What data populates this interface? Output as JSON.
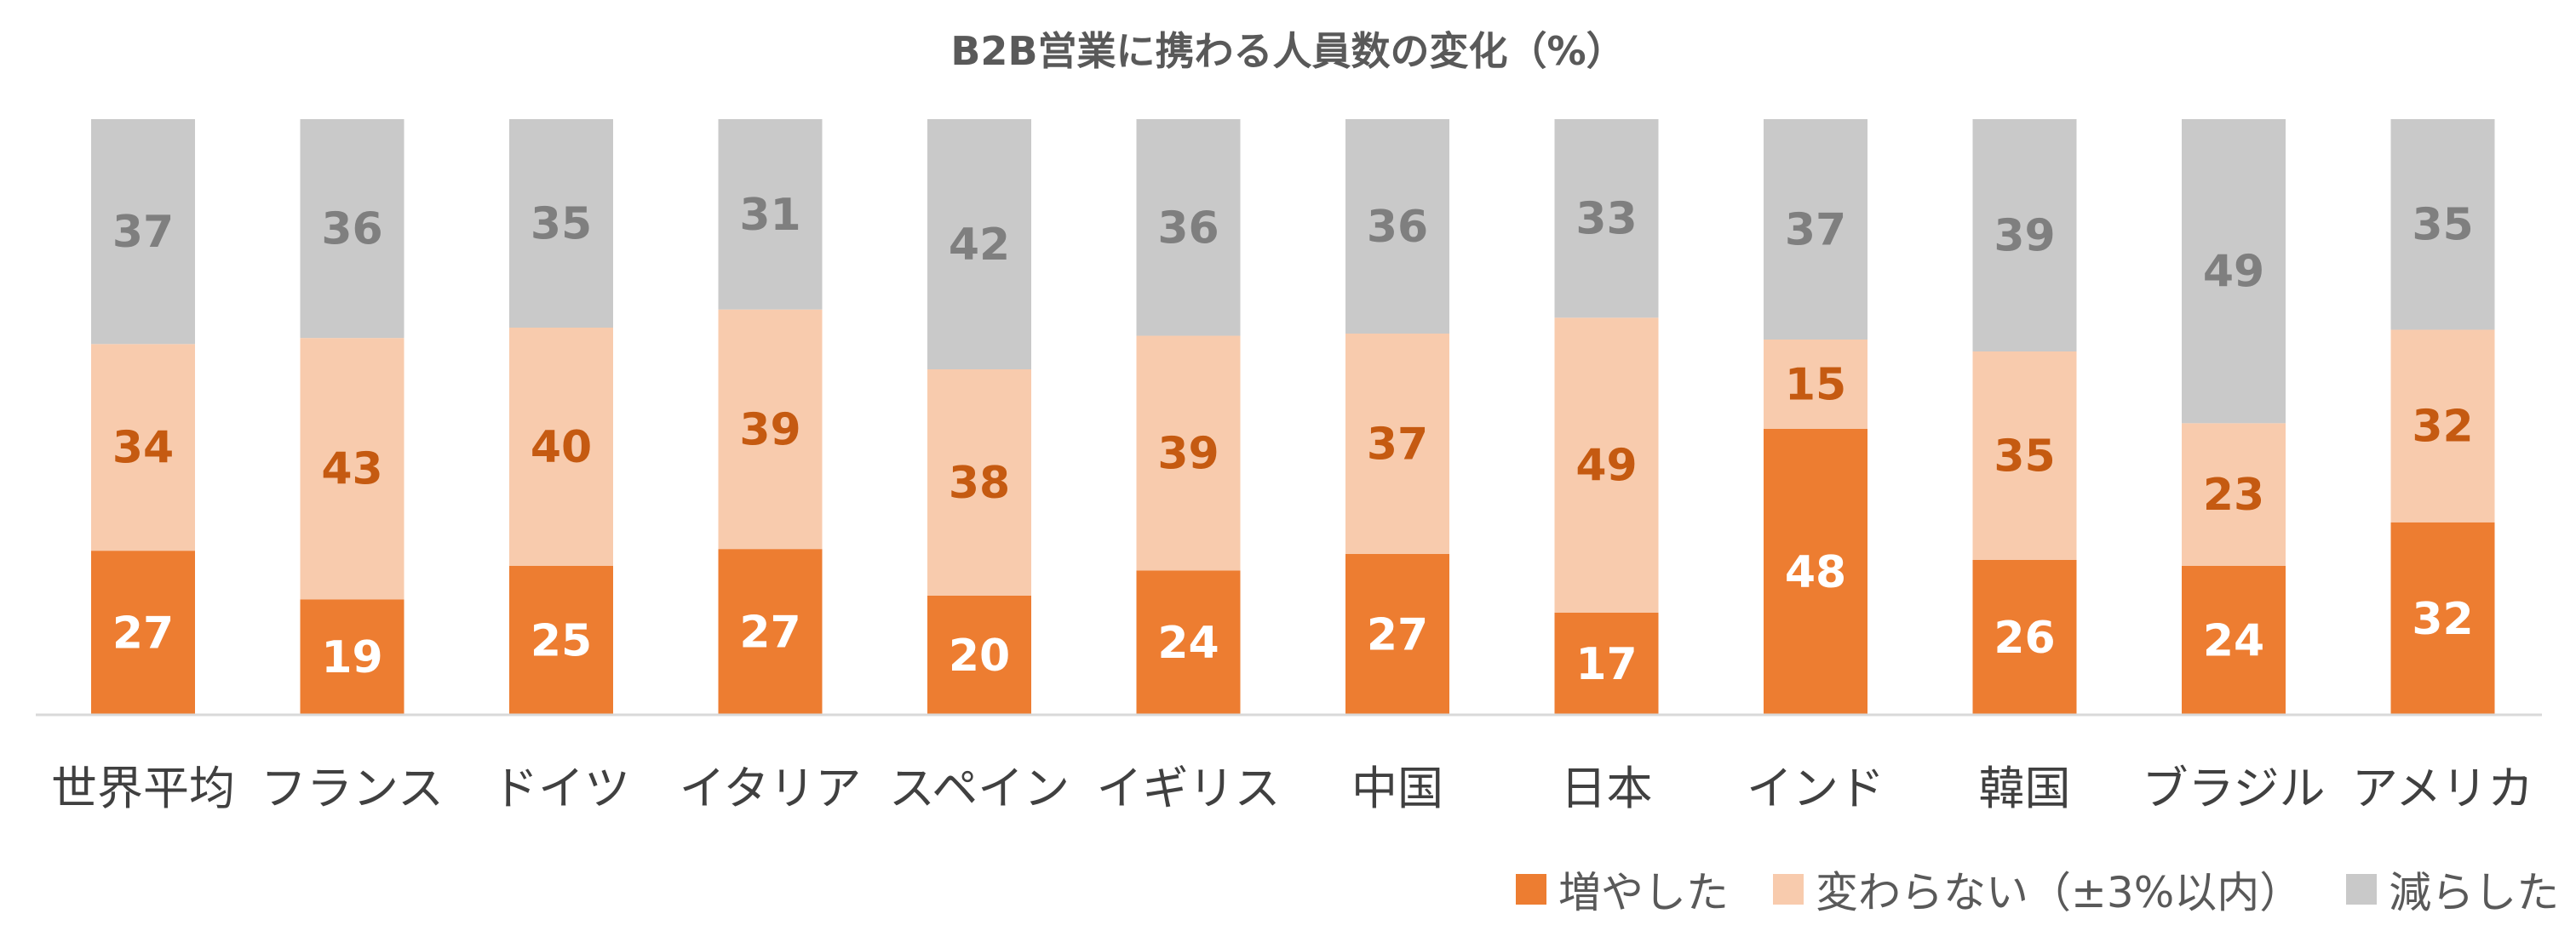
{
  "chart_data": {
    "type": "bar",
    "stacked": true,
    "normalized_percent": true,
    "title": "B2B営業に携わる人員数の変化（%）",
    "categories": [
      "世界平均",
      "フランス",
      "ドイツ",
      "イタリア",
      "スペイン",
      "イギリス",
      "中国",
      "日本",
      "インド",
      "韓国",
      "ブラジル",
      "アメリカ"
    ],
    "series": [
      {
        "name": "増やした",
        "color": "#ED7D31",
        "label_color": "#FFFFFF",
        "values": [
          27,
          19,
          25,
          27,
          20,
          24,
          27,
          17,
          48,
          26,
          24,
          32
        ]
      },
      {
        "name": "変わらない（±3%以内）",
        "color": "#F8CBAD",
        "label_color": "#C55A11",
        "values": [
          34,
          43,
          40,
          39,
          38,
          39,
          37,
          49,
          15,
          35,
          23,
          32
        ]
      },
      {
        "name": "減らした",
        "color": "#C9C9C9",
        "label_color": "#7F7F7F",
        "values": [
          37,
          36,
          35,
          31,
          42,
          36,
          36,
          33,
          37,
          39,
          49,
          35
        ]
      }
    ],
    "ylim": [
      0,
      100
    ],
    "grid": false,
    "legend_position": "bottom-right",
    "axis_color": "#D9D9D9",
    "category_label_color": "#404040"
  }
}
